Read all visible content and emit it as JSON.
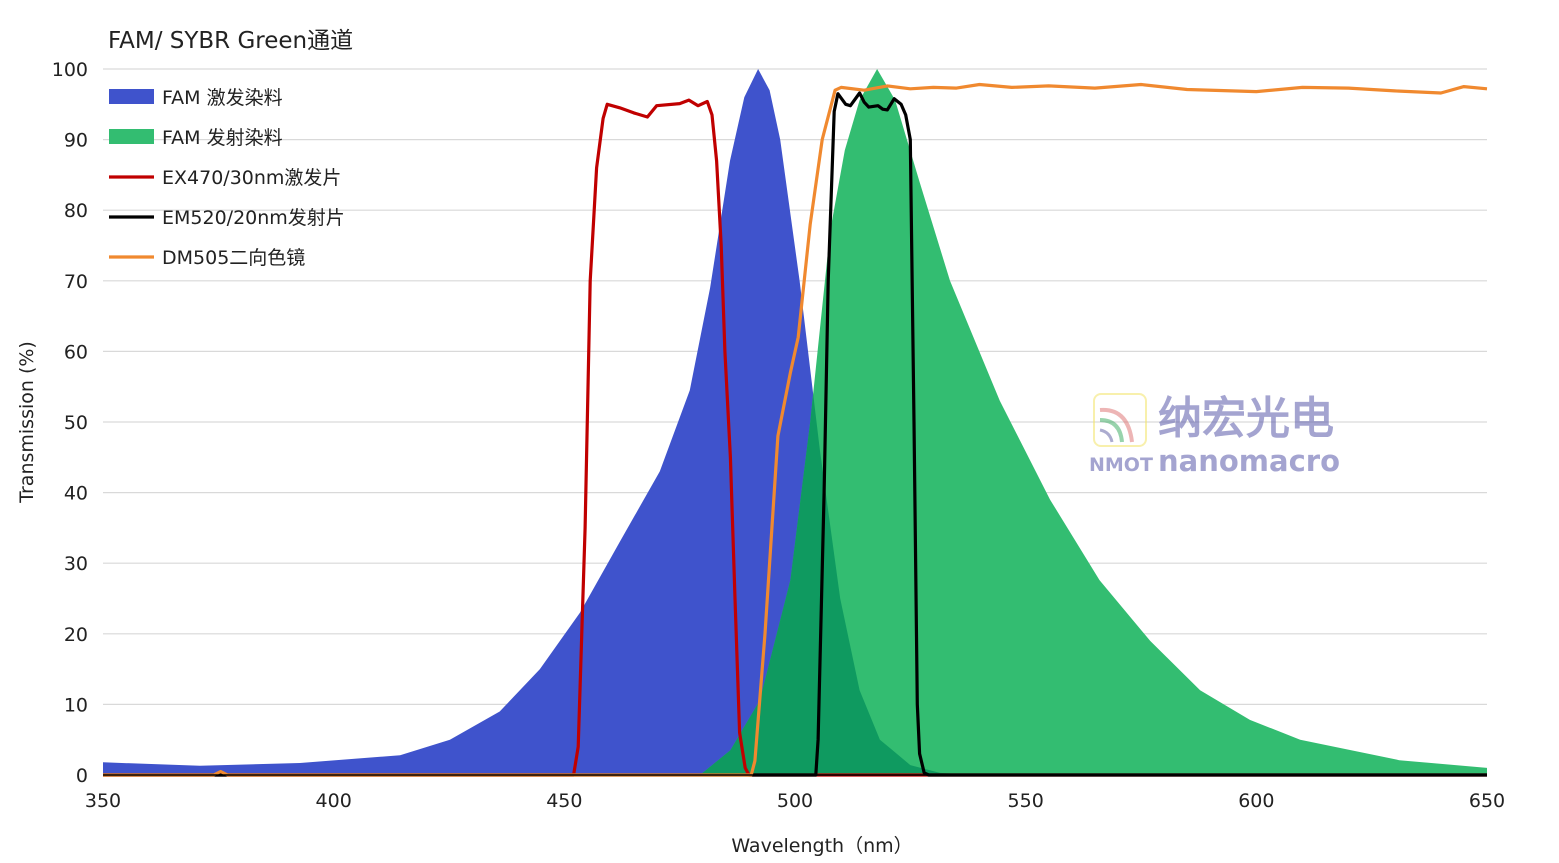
{
  "chart_data": {
    "type": "area",
    "title": "FAM/ SYBR Green通道",
    "xlabel": "Wavelength（nm）",
    "ylabel": "Transmission (%)",
    "xlim": [
      350,
      650
    ],
    "ylim": [
      0,
      100
    ],
    "xticks": [
      350,
      400,
      450,
      500,
      550,
      600,
      650
    ],
    "yticks": [
      0,
      10,
      20,
      30,
      40,
      50,
      60,
      70,
      80,
      90,
      100
    ],
    "grid": "horizontal",
    "legend_position": "top-left",
    "watermark": {
      "cn": "纳宏光电",
      "brand": "NMOT",
      "en": "nanomacro"
    },
    "series": [
      {
        "name": "FAM 激发染料",
        "kind": "area",
        "color": "#3f53cc",
        "points": [
          [
            350,
            1.8
          ],
          [
            371,
            1.3
          ],
          [
            392.7,
            1.7
          ],
          [
            414.4,
            2.8
          ],
          [
            425.2,
            5
          ],
          [
            436,
            9
          ],
          [
            444.7,
            15
          ],
          [
            453.4,
            23
          ],
          [
            462,
            33
          ],
          [
            470.7,
            43
          ],
          [
            477.2,
            54.5
          ],
          [
            481.6,
            69
          ],
          [
            485.9,
            87
          ],
          [
            489,
            96
          ],
          [
            492,
            100
          ],
          [
            494.5,
            97
          ],
          [
            496.8,
            90
          ],
          [
            501,
            70
          ],
          [
            505.4,
            46
          ],
          [
            509.8,
            25
          ],
          [
            514,
            12
          ],
          [
            518.4,
            5
          ],
          [
            525,
            1.4
          ],
          [
            531.4,
            0.3
          ],
          [
            540,
            0
          ],
          [
            650,
            0
          ]
        ]
      },
      {
        "name": "FAM 发射染料",
        "kind": "area",
        "color": "#33bd71",
        "points": [
          [
            350,
            0
          ],
          [
            479.4,
            0
          ],
          [
            486,
            3.5
          ],
          [
            492.4,
            10.6
          ],
          [
            499,
            27.6
          ],
          [
            503.3,
            50
          ],
          [
            507.6,
            77
          ],
          [
            510.8,
            88.5
          ],
          [
            514,
            95.6
          ],
          [
            517.8,
            100
          ],
          [
            521.7,
            95.6
          ],
          [
            527,
            84
          ],
          [
            533.6,
            70
          ],
          [
            544.4,
            53
          ],
          [
            555.3,
            39
          ],
          [
            566,
            27.6
          ],
          [
            577,
            19
          ],
          [
            587.8,
            12
          ],
          [
            598.6,
            7.8
          ],
          [
            609.5,
            5
          ],
          [
            631,
            2.1
          ],
          [
            650,
            1
          ]
        ]
      },
      {
        "name": "EX470/30nm激发片",
        "kind": "line",
        "color": "#c00000",
        "points": [
          [
            350,
            0
          ],
          [
            452,
            0
          ],
          [
            453,
            4
          ],
          [
            454.5,
            35
          ],
          [
            455.6,
            70
          ],
          [
            457,
            86
          ],
          [
            458.4,
            93
          ],
          [
            459.3,
            95
          ],
          [
            462,
            94.5
          ],
          [
            465,
            93.8
          ],
          [
            468,
            93.2
          ],
          [
            470,
            94.8
          ],
          [
            475,
            95.1
          ],
          [
            477,
            95.6
          ],
          [
            479,
            94.8
          ],
          [
            481,
            95.4
          ],
          [
            482,
            93.5
          ],
          [
            483,
            87
          ],
          [
            484,
            75
          ],
          [
            484.8,
            60
          ],
          [
            486,
            45
          ],
          [
            487,
            25
          ],
          [
            488,
            6
          ],
          [
            489.2,
            1
          ],
          [
            490,
            0
          ],
          [
            650,
            0
          ]
        ]
      },
      {
        "name": "EM520/20nm发射片",
        "kind": "line",
        "color": "#000000",
        "points": [
          [
            350,
            0
          ],
          [
            504.5,
            0
          ],
          [
            505,
            5
          ],
          [
            506.3,
            40
          ],
          [
            507.2,
            70
          ],
          [
            508.5,
            94
          ],
          [
            509.3,
            96.5
          ],
          [
            511,
            95
          ],
          [
            512,
            94.8
          ],
          [
            514,
            96.6
          ],
          [
            515,
            95.3
          ],
          [
            516,
            94.6
          ],
          [
            518,
            94.8
          ],
          [
            519,
            94.3
          ],
          [
            520,
            94.2
          ],
          [
            521.5,
            95.8
          ],
          [
            523,
            95
          ],
          [
            524,
            93.5
          ],
          [
            525,
            90
          ],
          [
            525.8,
            50
          ],
          [
            526.5,
            10
          ],
          [
            527,
            3
          ],
          [
            528,
            0.3
          ],
          [
            529,
            0
          ],
          [
            650,
            0
          ]
        ]
      },
      {
        "name": "DM505二向色镜",
        "kind": "line",
        "color": "#f0892f",
        "points": [
          [
            350,
            0
          ],
          [
            374,
            0
          ],
          [
            375.5,
            0.5
          ],
          [
            377,
            0
          ],
          [
            490.5,
            0
          ],
          [
            491.3,
            2
          ],
          [
            493.5,
            20
          ],
          [
            496.3,
            48
          ],
          [
            499,
            57
          ],
          [
            500.7,
            62
          ],
          [
            503.3,
            78
          ],
          [
            505.9,
            90
          ],
          [
            508.7,
            97
          ],
          [
            510,
            97.4
          ],
          [
            515,
            97
          ],
          [
            520,
            97.6
          ],
          [
            525,
            97.2
          ],
          [
            530,
            97.4
          ],
          [
            535,
            97.3
          ],
          [
            540,
            97.8
          ],
          [
            547,
            97.4
          ],
          [
            555,
            97.6
          ],
          [
            565,
            97.3
          ],
          [
            575,
            97.8
          ],
          [
            585,
            97.1
          ],
          [
            600,
            96.8
          ],
          [
            610,
            97.4
          ],
          [
            620,
            97.3
          ],
          [
            630,
            96.9
          ],
          [
            640,
            96.6
          ],
          [
            645,
            97.5
          ],
          [
            650,
            97.2
          ]
        ]
      }
    ]
  }
}
